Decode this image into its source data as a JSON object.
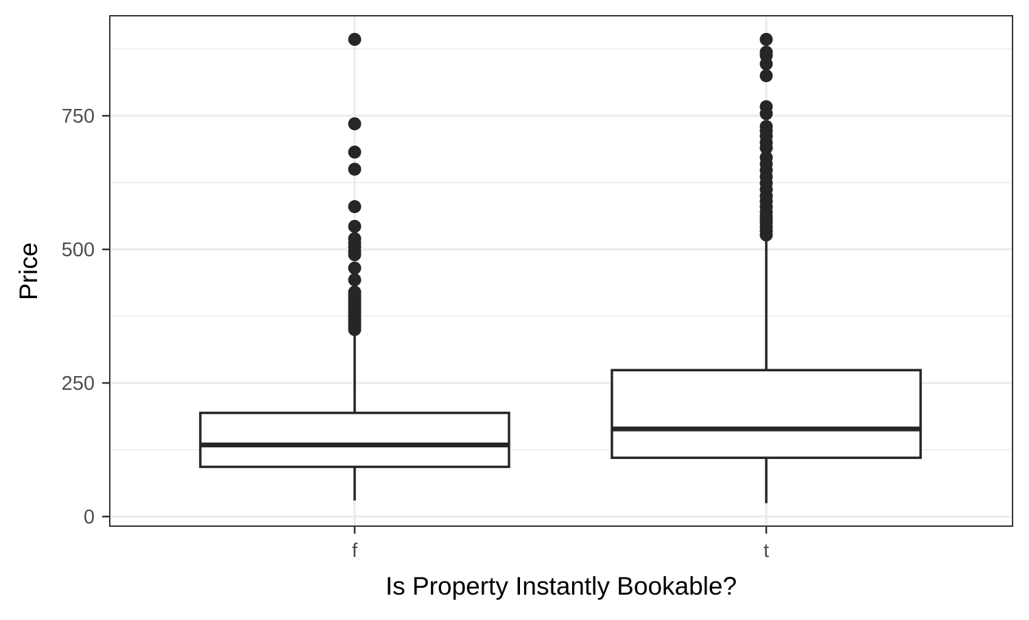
{
  "chart_data": {
    "type": "box",
    "xlabel": "Is Property Instantly Bookable?",
    "ylabel": "Price",
    "categories": [
      "f",
      "t"
    ],
    "ylim": [
      -20,
      950
    ],
    "yticks": [
      0,
      250,
      500,
      750
    ],
    "grid": true,
    "theme_colors": {
      "box_stroke": "#262626",
      "grid": "#ebebeb",
      "panel_border": "#333333"
    },
    "boxes": [
      {
        "category": "f",
        "whisker_low": 30,
        "q1": 93,
        "median": 134,
        "q3": 194,
        "whisker_high": 346,
        "outliers": [
          350,
          355,
          360,
          365,
          370,
          375,
          380,
          385,
          390,
          395,
          400,
          405,
          410,
          415,
          420,
          443,
          465,
          490,
          496,
          505,
          512,
          520,
          543,
          580,
          650,
          682,
          735,
          893
        ]
      },
      {
        "category": "t",
        "whisker_low": 25,
        "q1": 110,
        "median": 164,
        "q3": 274,
        "whisker_high": 524,
        "outliers": [
          527,
          535,
          542,
          550,
          556,
          562,
          570,
          580,
          590,
          600,
          612,
          624,
          636,
          648,
          660,
          672,
          690,
          700,
          712,
          722,
          730,
          754,
          767,
          825,
          847,
          863,
          869,
          893
        ]
      }
    ]
  }
}
